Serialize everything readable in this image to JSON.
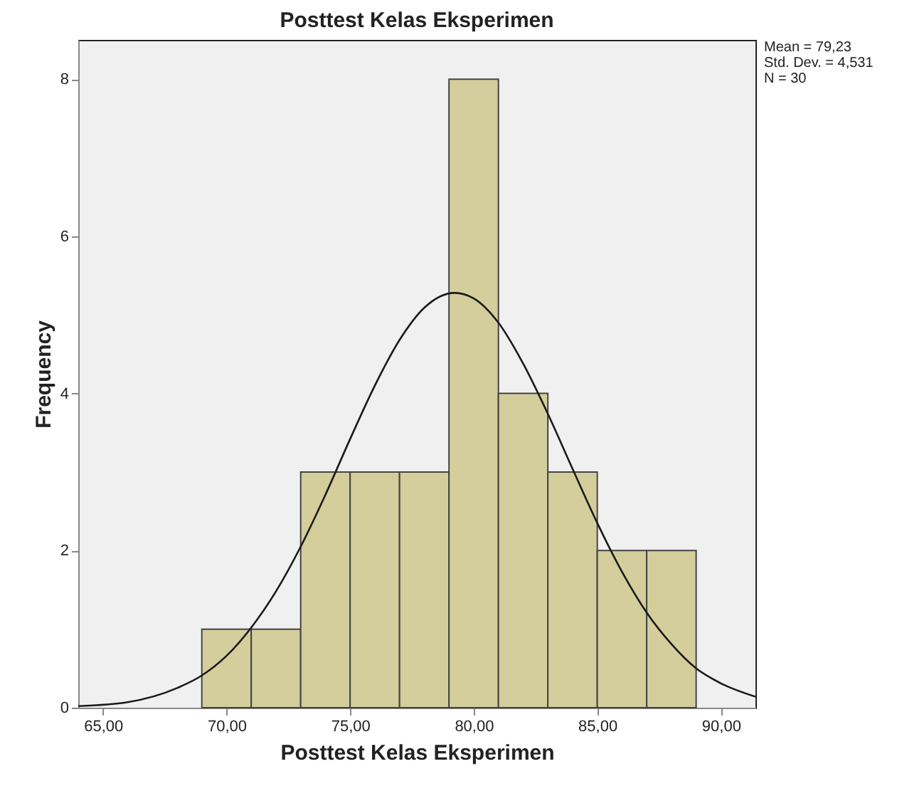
{
  "chart_data": {
    "type": "histogram",
    "title": "Posttest Kelas Eksperimen",
    "xlabel": "Posttest Kelas Eksperimen",
    "ylabel": "Frequency",
    "bins": [
      69,
      71,
      73,
      75,
      77,
      79,
      81,
      83,
      85,
      87,
      89
    ],
    "values": [
      1,
      1,
      3,
      3,
      3,
      8,
      4,
      3,
      2,
      2
    ],
    "color": "#d3ce9b",
    "series": [
      {
        "type": "line",
        "color": "#1a1a1a",
        "x": [
          64,
          66,
          68,
          69,
          70,
          71,
          72,
          73,
          74,
          75,
          76,
          77,
          78,
          79.23,
          80,
          81,
          82,
          83,
          84,
          85,
          86,
          87,
          88,
          89,
          90,
          91.4
        ],
        "values": [
          0.02,
          0.07,
          0.25,
          0.41,
          0.66,
          1.02,
          1.48,
          2.05,
          2.71,
          3.42,
          4.1,
          4.68,
          5.09,
          5.28,
          5.21,
          4.9,
          4.38,
          3.74,
          3.04,
          2.35,
          1.73,
          1.21,
          0.81,
          0.5,
          0.31,
          0.14
        ]
      }
    ],
    "xlim": [
      64,
      91.4
    ],
    "xticks": [
      {
        "value": 65,
        "label": "65,00"
      },
      {
        "value": 70,
        "label": "70,00"
      },
      {
        "value": 75,
        "label": "75,00"
      },
      {
        "value": 80,
        "label": "80,00"
      },
      {
        "value": 85,
        "label": "85,00"
      },
      {
        "value": 90,
        "label": "90,00"
      }
    ],
    "ylim": [
      0,
      8.5
    ],
    "yticks": [
      0,
      2,
      4,
      6,
      8
    ],
    "annotations": [
      "Mean = 79,23",
      "Std. Dev. = 4,531",
      "N = 30"
    ]
  }
}
